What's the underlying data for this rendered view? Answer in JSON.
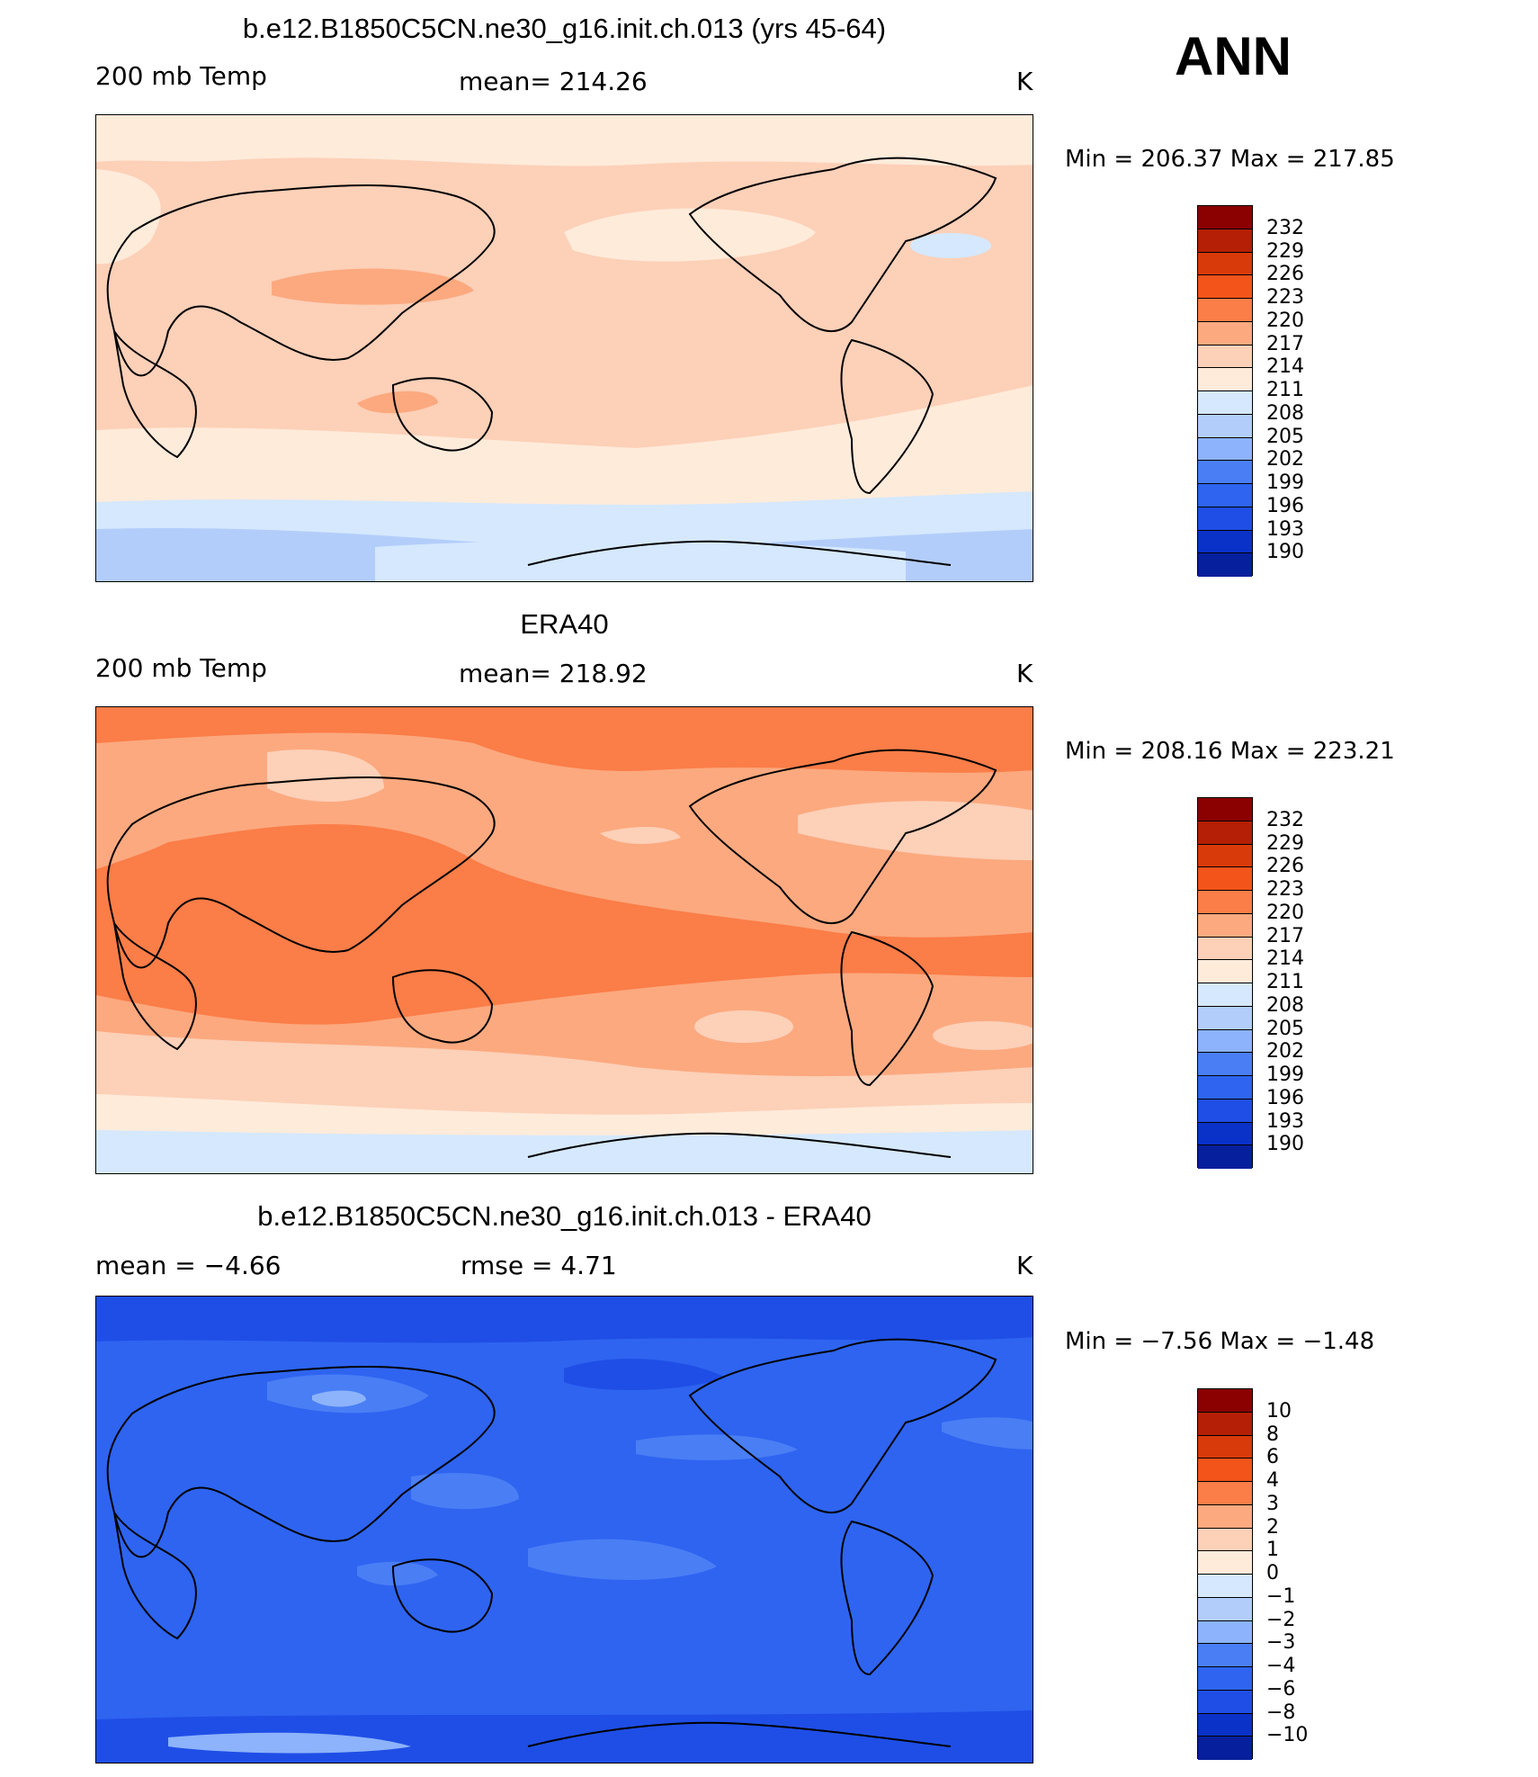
{
  "season": "ANN",
  "panels": [
    {
      "title": "b.e12.B1850C5CN.ne30_g16.init.ch.013 (yrs 45-64)",
      "left_label": "200 mb Temp",
      "center_label": "mean=  214.26",
      "units": "K",
      "minmax": "Min  =  206.37  Max  =  217.85",
      "background": "#fdd0b8",
      "bands": [
        {
          "color": "#ffebda",
          "note": "northern high latitude band"
        },
        {
          "color": "#fdd0b8",
          "note": "tropics"
        },
        {
          "color": "#ffebda",
          "note": "southern midlatitude band"
        },
        {
          "color": "#d5e8fd",
          "note": "subantarctic"
        },
        {
          "color": "#b3cdfb",
          "note": "antarctic"
        }
      ],
      "levels": [
        "232",
        "229",
        "226",
        "223",
        "220",
        "217",
        "214",
        "211",
        "208",
        "205",
        "202",
        "199",
        "196",
        "193",
        "190"
      ]
    },
    {
      "title": "ERA40",
      "left_label": "200 mb Temp",
      "center_label": "mean=  218.92",
      "units": "K",
      "minmax": "Min  =  208.16  Max  =  223.21",
      "background": "#fca97f",
      "bands": [
        {
          "color": "#fb7d48",
          "note": "tropical belt"
        },
        {
          "color": "#fca97f",
          "note": "midlatitudes"
        },
        {
          "color": "#fdd0b8",
          "note": "southern high latitudes"
        },
        {
          "color": "#ffebda",
          "note": "near antarctic"
        },
        {
          "color": "#d5e8fd",
          "note": "antarctic"
        }
      ],
      "levels": [
        "232",
        "229",
        "226",
        "223",
        "220",
        "217",
        "214",
        "211",
        "208",
        "205",
        "202",
        "199",
        "196",
        "193",
        "190"
      ]
    },
    {
      "title": "b.e12.B1850C5CN.ne30_g16.init.ch.013 - ERA40",
      "left_label": "mean  =    −4.66",
      "center_label": "rmse  =     4.71",
      "units": "K",
      "minmax": "Min  =    −7.56  Max  =    −1.48",
      "background": "#2e64f0",
      "bands": [
        {
          "color": "#1f4ee6",
          "note": "high latitudes"
        },
        {
          "color": "#4a7ef5",
          "note": "patches"
        },
        {
          "color": "#8cb3fb",
          "note": "light patches"
        }
      ],
      "levels": [
        "10",
        "8",
        "6",
        "4",
        "3",
        "2",
        "1",
        "0",
        "−1",
        "−2",
        "−3",
        "−4",
        "−6",
        "−8",
        "−10"
      ]
    }
  ],
  "colorbar_colors": [
    "#8b0000",
    "#b41f05",
    "#d93a0a",
    "#f2541a",
    "#fb7d48",
    "#fca97f",
    "#fdd0b8",
    "#ffebda",
    "#d5e8fd",
    "#b3cdfb",
    "#8cb3fb",
    "#4a7ef5",
    "#2e64f0",
    "#1f4ee6",
    "#0b32c8",
    "#061f9c",
    "#00087a"
  ]
}
